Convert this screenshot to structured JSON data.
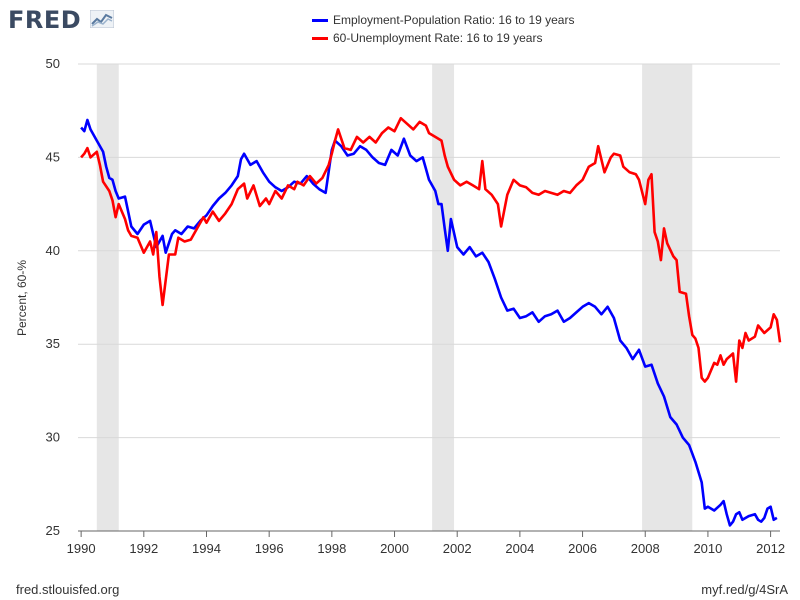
{
  "brand": {
    "logo_text": "FRED",
    "logo_icon": "fred-graph-icon"
  },
  "footer": {
    "left": "fred.stlouisfed.org",
    "right": "myf.red/g/4SrA"
  },
  "colors": {
    "series1": "#0000ff",
    "series2": "#ff0000",
    "recession": "#e6e6e6",
    "grid": "#d9d9d9",
    "axis": "#666666"
  },
  "chart_data": {
    "type": "line",
    "title": "",
    "xlabel": "",
    "ylabel": "Percent, 60-%",
    "xlim": [
      1989.9,
      2012.3
    ],
    "ylim": [
      25,
      50
    ],
    "yticks": [
      25,
      30,
      35,
      40,
      45,
      50
    ],
    "xticks": [
      1990,
      1992,
      1994,
      1996,
      1998,
      2000,
      2002,
      2004,
      2006,
      2008,
      2010,
      2012
    ],
    "grid": "horizontal",
    "legend_position": "top-center",
    "recessions": [
      [
        1990.5,
        1991.2
      ],
      [
        2001.2,
        2001.9
      ],
      [
        2007.9,
        2009.5
      ]
    ],
    "series": [
      {
        "name": "Employment-Population Ratio: 16 to 19 years",
        "color": "#0000ff",
        "points": [
          [
            1990.0,
            46.6
          ],
          [
            1990.1,
            46.4
          ],
          [
            1990.2,
            47.0
          ],
          [
            1990.3,
            46.5
          ],
          [
            1990.5,
            45.9
          ],
          [
            1990.7,
            45.3
          ],
          [
            1990.8,
            44.5
          ],
          [
            1990.9,
            43.9
          ],
          [
            1991.0,
            43.8
          ],
          [
            1991.1,
            43.2
          ],
          [
            1991.2,
            42.8
          ],
          [
            1991.4,
            42.9
          ],
          [
            1991.6,
            41.3
          ],
          [
            1991.8,
            40.9
          ],
          [
            1992.0,
            41.4
          ],
          [
            1992.2,
            41.6
          ],
          [
            1992.4,
            40.2
          ],
          [
            1992.6,
            40.8
          ],
          [
            1992.7,
            39.9
          ],
          [
            1992.9,
            40.9
          ],
          [
            1993.0,
            41.1
          ],
          [
            1993.2,
            40.9
          ],
          [
            1993.4,
            41.3
          ],
          [
            1993.6,
            41.2
          ],
          [
            1993.8,
            41.6
          ],
          [
            1994.0,
            41.9
          ],
          [
            1994.2,
            42.4
          ],
          [
            1994.4,
            42.8
          ],
          [
            1994.6,
            43.1
          ],
          [
            1994.8,
            43.5
          ],
          [
            1995.0,
            44.0
          ],
          [
            1995.1,
            44.9
          ],
          [
            1995.2,
            45.2
          ],
          [
            1995.4,
            44.6
          ],
          [
            1995.6,
            44.8
          ],
          [
            1995.8,
            44.2
          ],
          [
            1996.0,
            43.7
          ],
          [
            1996.2,
            43.4
          ],
          [
            1996.4,
            43.2
          ],
          [
            1996.6,
            43.4
          ],
          [
            1996.8,
            43.7
          ],
          [
            1997.0,
            43.6
          ],
          [
            1997.2,
            44.0
          ],
          [
            1997.4,
            43.6
          ],
          [
            1997.6,
            43.3
          ],
          [
            1997.8,
            43.1
          ],
          [
            1998.0,
            45.4
          ],
          [
            1998.1,
            45.9
          ],
          [
            1998.3,
            45.6
          ],
          [
            1998.5,
            45.1
          ],
          [
            1998.7,
            45.2
          ],
          [
            1998.9,
            45.6
          ],
          [
            1999.1,
            45.4
          ],
          [
            1999.3,
            45.0
          ],
          [
            1999.5,
            44.7
          ],
          [
            1999.7,
            44.6
          ],
          [
            1999.9,
            45.4
          ],
          [
            2000.1,
            45.1
          ],
          [
            2000.3,
            46.0
          ],
          [
            2000.5,
            45.1
          ],
          [
            2000.7,
            44.8
          ],
          [
            2000.9,
            45.0
          ],
          [
            2001.0,
            44.4
          ],
          [
            2001.1,
            43.8
          ],
          [
            2001.3,
            43.2
          ],
          [
            2001.4,
            42.5
          ],
          [
            2001.5,
            42.5
          ],
          [
            2001.6,
            41.2
          ],
          [
            2001.7,
            40.0
          ],
          [
            2001.8,
            41.7
          ],
          [
            2002.0,
            40.2
          ],
          [
            2002.2,
            39.8
          ],
          [
            2002.4,
            40.2
          ],
          [
            2002.6,
            39.7
          ],
          [
            2002.8,
            39.9
          ],
          [
            2003.0,
            39.4
          ],
          [
            2003.2,
            38.5
          ],
          [
            2003.4,
            37.5
          ],
          [
            2003.6,
            36.8
          ],
          [
            2003.8,
            36.9
          ],
          [
            2004.0,
            36.4
          ],
          [
            2004.2,
            36.5
          ],
          [
            2004.4,
            36.7
          ],
          [
            2004.6,
            36.2
          ],
          [
            2004.8,
            36.5
          ],
          [
            2005.0,
            36.6
          ],
          [
            2005.2,
            36.8
          ],
          [
            2005.4,
            36.2
          ],
          [
            2005.6,
            36.4
          ],
          [
            2005.8,
            36.7
          ],
          [
            2006.0,
            37.0
          ],
          [
            2006.2,
            37.2
          ],
          [
            2006.4,
            37.0
          ],
          [
            2006.6,
            36.6
          ],
          [
            2006.8,
            37.0
          ],
          [
            2007.0,
            36.4
          ],
          [
            2007.2,
            35.2
          ],
          [
            2007.4,
            34.8
          ],
          [
            2007.6,
            34.2
          ],
          [
            2007.8,
            34.7
          ],
          [
            2008.0,
            33.8
          ],
          [
            2008.2,
            33.9
          ],
          [
            2008.4,
            32.9
          ],
          [
            2008.6,
            32.2
          ],
          [
            2008.8,
            31.1
          ],
          [
            2009.0,
            30.7
          ],
          [
            2009.2,
            30.0
          ],
          [
            2009.4,
            29.6
          ],
          [
            2009.6,
            28.7
          ],
          [
            2009.8,
            27.6
          ],
          [
            2009.9,
            26.2
          ],
          [
            2010.0,
            26.3
          ],
          [
            2010.2,
            26.1
          ],
          [
            2010.4,
            26.4
          ],
          [
            2010.5,
            26.6
          ],
          [
            2010.6,
            25.9
          ],
          [
            2010.7,
            25.3
          ],
          [
            2010.8,
            25.5
          ],
          [
            2010.9,
            25.9
          ],
          [
            2011.0,
            26.0
          ],
          [
            2011.1,
            25.6
          ],
          [
            2011.3,
            25.8
          ],
          [
            2011.5,
            25.9
          ],
          [
            2011.6,
            25.6
          ],
          [
            2011.7,
            25.5
          ],
          [
            2011.8,
            25.7
          ],
          [
            2011.9,
            26.2
          ],
          [
            2012.0,
            26.3
          ],
          [
            2012.1,
            25.6
          ],
          [
            2012.2,
            25.7
          ]
        ]
      },
      {
        "name": "60-Unemployment Rate: 16 to 19 years",
        "color": "#ff0000",
        "points": [
          [
            1990.0,
            45.0
          ],
          [
            1990.1,
            45.2
          ],
          [
            1990.2,
            45.5
          ],
          [
            1990.3,
            45.0
          ],
          [
            1990.5,
            45.3
          ],
          [
            1990.6,
            44.6
          ],
          [
            1990.7,
            43.7
          ],
          [
            1990.9,
            43.2
          ],
          [
            1991.0,
            42.7
          ],
          [
            1991.1,
            41.8
          ],
          [
            1991.2,
            42.5
          ],
          [
            1991.4,
            41.7
          ],
          [
            1991.5,
            41.1
          ],
          [
            1991.6,
            40.8
          ],
          [
            1991.8,
            40.7
          ],
          [
            1992.0,
            39.9
          ],
          [
            1992.2,
            40.5
          ],
          [
            1992.3,
            39.8
          ],
          [
            1992.4,
            41.0
          ],
          [
            1992.5,
            38.6
          ],
          [
            1992.6,
            37.1
          ],
          [
            1992.8,
            39.8
          ],
          [
            1993.0,
            39.8
          ],
          [
            1993.1,
            40.7
          ],
          [
            1993.3,
            40.5
          ],
          [
            1993.5,
            40.6
          ],
          [
            1993.7,
            41.2
          ],
          [
            1993.9,
            41.8
          ],
          [
            1994.0,
            41.5
          ],
          [
            1994.2,
            42.1
          ],
          [
            1994.4,
            41.6
          ],
          [
            1994.6,
            42.0
          ],
          [
            1994.8,
            42.5
          ],
          [
            1995.0,
            43.3
          ],
          [
            1995.2,
            43.6
          ],
          [
            1995.3,
            42.8
          ],
          [
            1995.5,
            43.5
          ],
          [
            1995.7,
            42.4
          ],
          [
            1995.9,
            42.8
          ],
          [
            1996.0,
            42.5
          ],
          [
            1996.2,
            43.2
          ],
          [
            1996.4,
            42.8
          ],
          [
            1996.6,
            43.5
          ],
          [
            1996.8,
            43.3
          ],
          [
            1996.9,
            43.7
          ],
          [
            1997.1,
            43.5
          ],
          [
            1997.3,
            44.0
          ],
          [
            1997.5,
            43.6
          ],
          [
            1997.7,
            43.9
          ],
          [
            1997.9,
            44.6
          ],
          [
            1998.0,
            45.2
          ],
          [
            1998.1,
            45.9
          ],
          [
            1998.2,
            46.5
          ],
          [
            1998.4,
            45.5
          ],
          [
            1998.6,
            45.4
          ],
          [
            1998.8,
            46.1
          ],
          [
            1999.0,
            45.8
          ],
          [
            1999.2,
            46.1
          ],
          [
            1999.4,
            45.8
          ],
          [
            1999.6,
            46.3
          ],
          [
            1999.8,
            46.6
          ],
          [
            2000.0,
            46.4
          ],
          [
            2000.2,
            47.1
          ],
          [
            2000.4,
            46.8
          ],
          [
            2000.6,
            46.5
          ],
          [
            2000.8,
            46.9
          ],
          [
            2001.0,
            46.7
          ],
          [
            2001.1,
            46.3
          ],
          [
            2001.3,
            46.1
          ],
          [
            2001.5,
            45.9
          ],
          [
            2001.6,
            45.1
          ],
          [
            2001.7,
            44.5
          ],
          [
            2001.9,
            43.8
          ],
          [
            2002.1,
            43.5
          ],
          [
            2002.3,
            43.7
          ],
          [
            2002.5,
            43.5
          ],
          [
            2002.7,
            43.3
          ],
          [
            2002.8,
            44.8
          ],
          [
            2002.9,
            43.3
          ],
          [
            2003.1,
            43.0
          ],
          [
            2003.3,
            42.5
          ],
          [
            2003.4,
            41.3
          ],
          [
            2003.6,
            43.0
          ],
          [
            2003.8,
            43.8
          ],
          [
            2004.0,
            43.5
          ],
          [
            2004.2,
            43.4
          ],
          [
            2004.4,
            43.1
          ],
          [
            2004.6,
            43.0
          ],
          [
            2004.8,
            43.2
          ],
          [
            2005.0,
            43.1
          ],
          [
            2005.2,
            43.0
          ],
          [
            2005.4,
            43.2
          ],
          [
            2005.6,
            43.1
          ],
          [
            2005.8,
            43.5
          ],
          [
            2006.0,
            43.8
          ],
          [
            2006.2,
            44.5
          ],
          [
            2006.4,
            44.7
          ],
          [
            2006.5,
            45.6
          ],
          [
            2006.7,
            44.2
          ],
          [
            2006.9,
            45.0
          ],
          [
            2007.0,
            45.2
          ],
          [
            2007.2,
            45.1
          ],
          [
            2007.3,
            44.5
          ],
          [
            2007.5,
            44.2
          ],
          [
            2007.7,
            44.1
          ],
          [
            2007.8,
            43.8
          ],
          [
            2008.0,
            42.5
          ],
          [
            2008.1,
            43.8
          ],
          [
            2008.2,
            44.1
          ],
          [
            2008.3,
            41.0
          ],
          [
            2008.4,
            40.5
          ],
          [
            2008.5,
            39.5
          ],
          [
            2008.6,
            41.2
          ],
          [
            2008.7,
            40.4
          ],
          [
            2008.9,
            39.7
          ],
          [
            2009.0,
            39.5
          ],
          [
            2009.1,
            37.8
          ],
          [
            2009.3,
            37.7
          ],
          [
            2009.4,
            36.5
          ],
          [
            2009.5,
            35.5
          ],
          [
            2009.6,
            35.3
          ],
          [
            2009.7,
            34.8
          ],
          [
            2009.8,
            33.2
          ],
          [
            2009.9,
            33.0
          ],
          [
            2010.0,
            33.2
          ],
          [
            2010.2,
            34.0
          ],
          [
            2010.3,
            33.9
          ],
          [
            2010.4,
            34.4
          ],
          [
            2010.5,
            33.9
          ],
          [
            2010.6,
            34.2
          ],
          [
            2010.8,
            34.5
          ],
          [
            2010.9,
            33.0
          ],
          [
            2011.0,
            35.2
          ],
          [
            2011.1,
            34.8
          ],
          [
            2011.2,
            35.6
          ],
          [
            2011.3,
            35.2
          ],
          [
            2011.5,
            35.4
          ],
          [
            2011.6,
            36.0
          ],
          [
            2011.8,
            35.6
          ],
          [
            2012.0,
            35.9
          ],
          [
            2012.1,
            36.6
          ],
          [
            2012.2,
            36.3
          ],
          [
            2012.3,
            35.1
          ]
        ]
      }
    ]
  }
}
